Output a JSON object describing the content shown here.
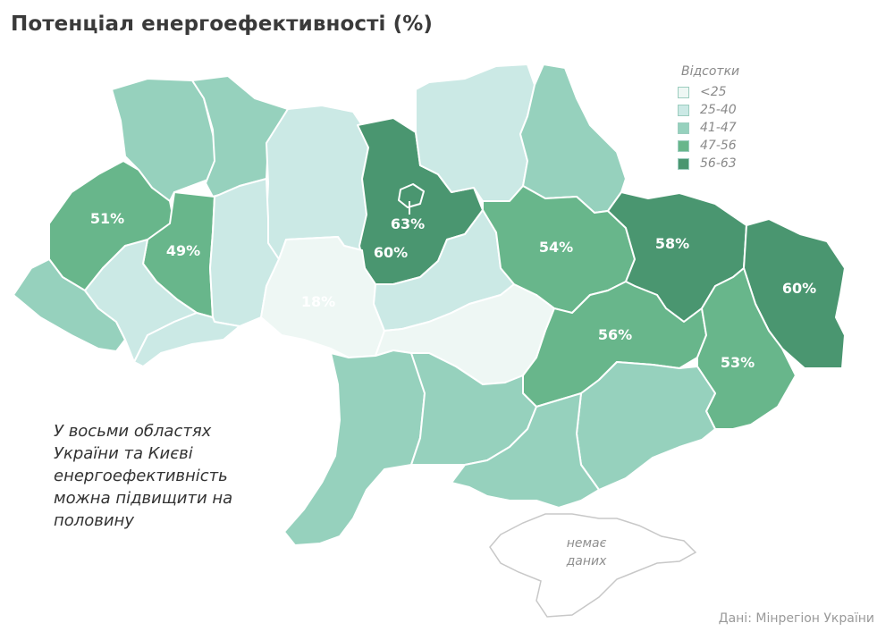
{
  "title": "Потенціал енергоефективності (%)",
  "legend": {
    "title": "Відсотки",
    "items": [
      {
        "label": "<25",
        "color": "#eef7f4"
      },
      {
        "label": "25-40",
        "color": "#cbe9e5"
      },
      {
        "label": "41-47",
        "color": "#96d1bd"
      },
      {
        "label": "47-56",
        "color": "#68b68b"
      },
      {
        "label": "56-63",
        "color": "#4a9670"
      }
    ]
  },
  "note": "У восьми областях України та Києві енергоефективність можна підвищити на половину",
  "no_data": "немає даних",
  "source": "Дані: Мінрегіон України",
  "labels": [
    {
      "id": "lviv",
      "text": "51%"
    },
    {
      "id": "ternopil",
      "text": "49%"
    },
    {
      "id": "vinnytsia",
      "text": "18%"
    },
    {
      "id": "kyiv-city",
      "text": "63%"
    },
    {
      "id": "kyiv-oblast",
      "text": "60%"
    },
    {
      "id": "poltava",
      "text": "54%"
    },
    {
      "id": "kharkiv",
      "text": "58%"
    },
    {
      "id": "luhansk",
      "text": "60%"
    },
    {
      "id": "dnipro",
      "text": "56%"
    },
    {
      "id": "donetsk",
      "text": "53%"
    }
  ]
}
